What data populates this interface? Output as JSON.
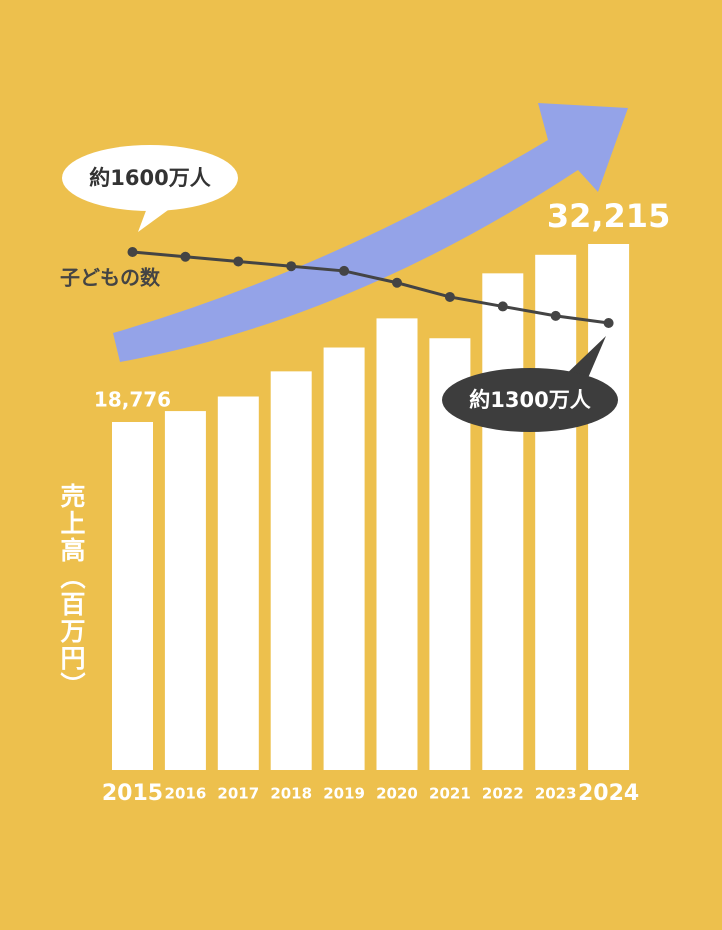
{
  "chart_data": {
    "type": "bar",
    "y_label": "売上高（百万円）",
    "categories": [
      "2015",
      "2016",
      "2017",
      "2018",
      "2019",
      "2020",
      "2021",
      "2022",
      "2023",
      "2024"
    ],
    "series": [
      {
        "type": "bar",
        "color": "#ffffff",
        "values": [
          18776,
          19600,
          20700,
          22600,
          24400,
          26600,
          25100,
          30000,
          31400,
          32215
        ],
        "value_labels": [
          "18,776",
          null,
          null,
          null,
          null,
          null,
          null,
          null,
          null,
          "32,215"
        ]
      },
      {
        "type": "line",
        "name": "子どもの数",
        "color": "#444444",
        "values": [
          1600,
          1580,
          1560,
          1540,
          1520,
          1470,
          1410,
          1370,
          1330,
          1300
        ],
        "value_labels": [
          "約1600万人",
          null,
          null,
          null,
          null,
          null,
          null,
          null,
          null,
          "約1300万人"
        ]
      }
    ]
  }
}
